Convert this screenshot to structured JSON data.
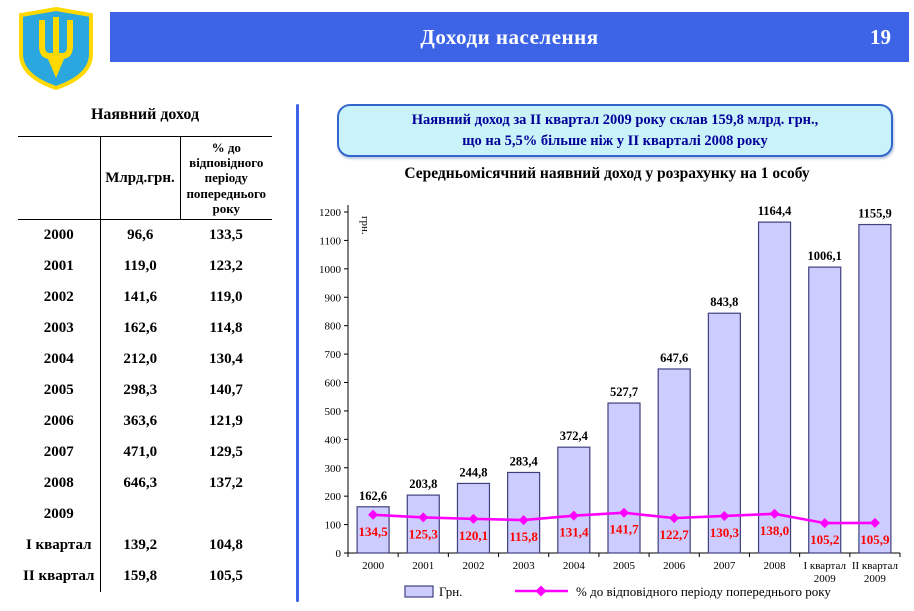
{
  "header": {
    "title": "Доходи населення",
    "page_number": "19"
  },
  "colors": {
    "banner": "#3D63E7",
    "divider": "#3D63E7",
    "callout_bg": "#CAF2F9",
    "callout_border": "#3366CC",
    "callout_text": "#000099",
    "bar_fill": "#CCCCFF",
    "bar_border": "#40407E",
    "line": "#FF00FF",
    "pct_label": "#FF0000",
    "shield_blue": "#2AA7DF",
    "trident_yellow": "#FFD900"
  },
  "table": {
    "title": "Наявний доход",
    "columns": [
      "",
      "Млрд.грн.",
      "% до відповідного періоду попереднього року"
    ],
    "rows": [
      {
        "period": "2000",
        "value": "96,6",
        "pct": "133,5"
      },
      {
        "period": "2001",
        "value": "119,0",
        "pct": "123,2"
      },
      {
        "period": "2002",
        "value": "141,6",
        "pct": "119,0"
      },
      {
        "period": "2003",
        "value": "162,6",
        "pct": "114,8"
      },
      {
        "period": "2004",
        "value": "212,0",
        "pct": "130,4"
      },
      {
        "period": "2005",
        "value": "298,3",
        "pct": "140,7"
      },
      {
        "period": "2006",
        "value": "363,6",
        "pct": "121,9"
      },
      {
        "period": "2007",
        "value": "471,0",
        "pct": "129,5"
      },
      {
        "period": "2008",
        "value": "646,3",
        "pct": "137,2"
      },
      {
        "period": "2009",
        "value": "",
        "pct": ""
      },
      {
        "period": "І квартал",
        "value": "139,2",
        "pct": "104,8"
      },
      {
        "period": "ІІ квартал",
        "value": "159,8",
        "pct": "105,5"
      }
    ]
  },
  "callout": {
    "line1": "Наявний доход за ІІ квартал 2009 року склав 159,8 млрд. грн.,",
    "line2": "що на 5,5% більше ніж у ІІ кварталі 2008 року"
  },
  "chart_data": {
    "type": "bar",
    "title": "Середньомісячний наявний доход у розрахунку на 1 особу",
    "ylabel": "грн.",
    "ylim": [
      0,
      1200
    ],
    "ytick_step": 100,
    "grid": false,
    "legend_position": "bottom",
    "categories": [
      "2000",
      "2001",
      "2002",
      "2003",
      "2004",
      "2005",
      "2006",
      "2007",
      "2008",
      "І квартал|2009",
      "ІІ квартал|2009"
    ],
    "series": [
      {
        "name": "Грн.",
        "type": "bar",
        "values": [
          162.6,
          203.8,
          244.8,
          283.4,
          372.4,
          527.7,
          647.6,
          843.8,
          1164.4,
          1006.1,
          1155.9
        ],
        "labels": [
          "162,6",
          "203,8",
          "244,8",
          "283,4",
          "372,4",
          "527,7",
          "647,6",
          "843,8",
          "1164,4",
          "1006,1",
          "1155,9"
        ]
      },
      {
        "name": "% до відповідного періоду попереднього року",
        "type": "line",
        "values": [
          134.5,
          125.3,
          120.1,
          115.8,
          131.4,
          141.7,
          122.7,
          130.3,
          138.0,
          105.2,
          105.9
        ],
        "labels": [
          "134,5",
          "125,3",
          "120,1",
          "115,8",
          "131,4",
          "141,7",
          "122,7",
          "130,3",
          "138,0",
          "105,2",
          "105,9"
        ]
      }
    ]
  }
}
